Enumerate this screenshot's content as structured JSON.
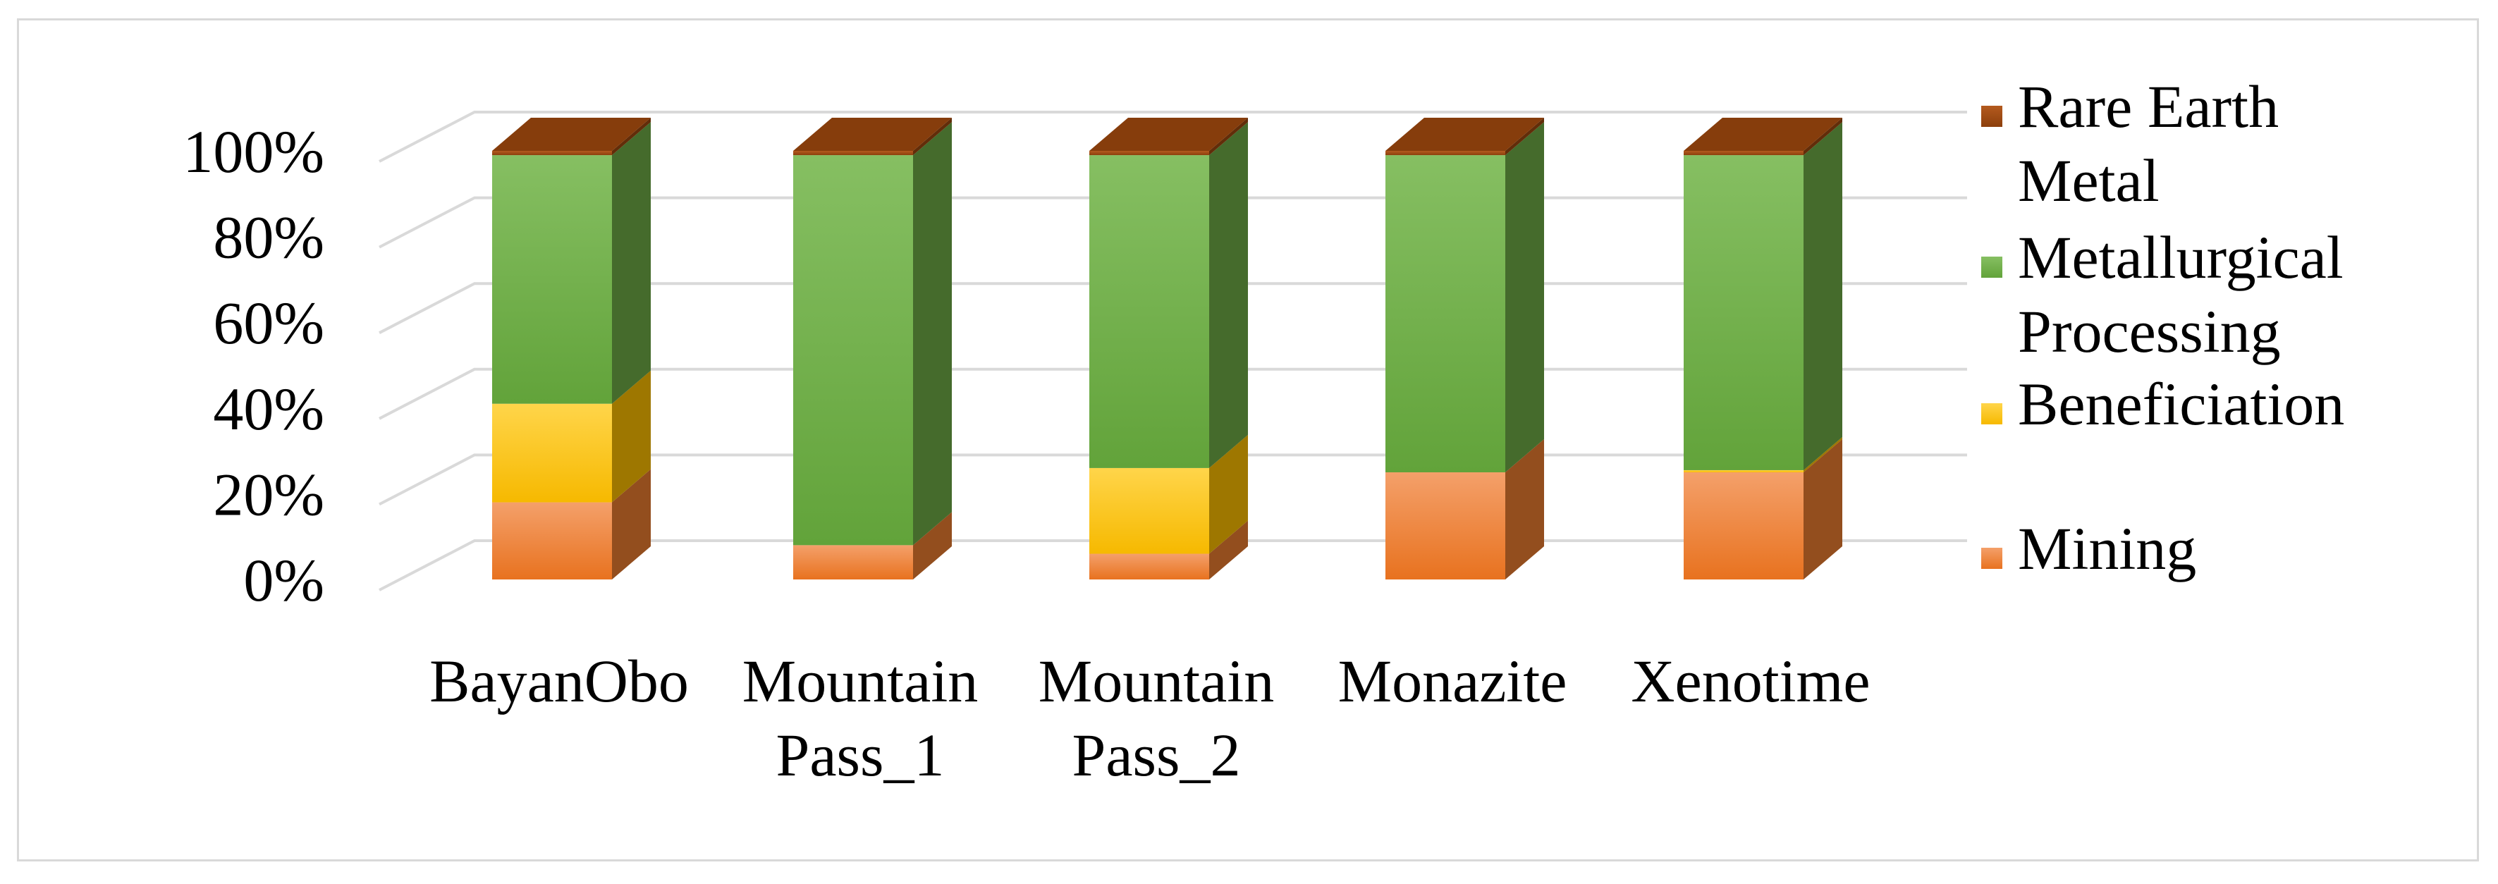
{
  "chart_data": {
    "type": "bar",
    "stacked": true,
    "percent": true,
    "three_d": true,
    "categories": [
      "BayanObo",
      "Mountain Pass_1",
      "Mountain Pass_2",
      "Monazite",
      "Xenotime"
    ],
    "series": [
      {
        "name": "Mining",
        "color": "#ed7d31",
        "values": [
          18,
          8,
          6,
          25,
          25
        ]
      },
      {
        "name": "Beneficiation",
        "color": "#ffc000",
        "values": [
          23,
          0,
          20,
          0,
          0.5
        ]
      },
      {
        "name": "Metallurgical Processing",
        "color": "#70ad47",
        "values": [
          58,
          91,
          73,
          74,
          73.5
        ]
      },
      {
        "name": "Rare Earth Metal",
        "color": "#9e480e",
        "values": [
          1,
          1,
          1,
          1,
          1
        ]
      }
    ],
    "yticks": [
      "0%",
      "20%",
      "40%",
      "60%",
      "80%",
      "100%"
    ],
    "ylim": [
      0,
      100
    ],
    "grid": true,
    "legend": {
      "position": "right",
      "order": [
        "Rare Earth Metal",
        "Metallurgical Processing",
        "Beneficiation",
        "Mining"
      ],
      "labels": [
        [
          "Rare Earth",
          "Metal"
        ],
        [
          "Metallurgical",
          "Processing"
        ],
        [
          "Beneficiation"
        ],
        [
          "Mining"
        ]
      ]
    }
  }
}
